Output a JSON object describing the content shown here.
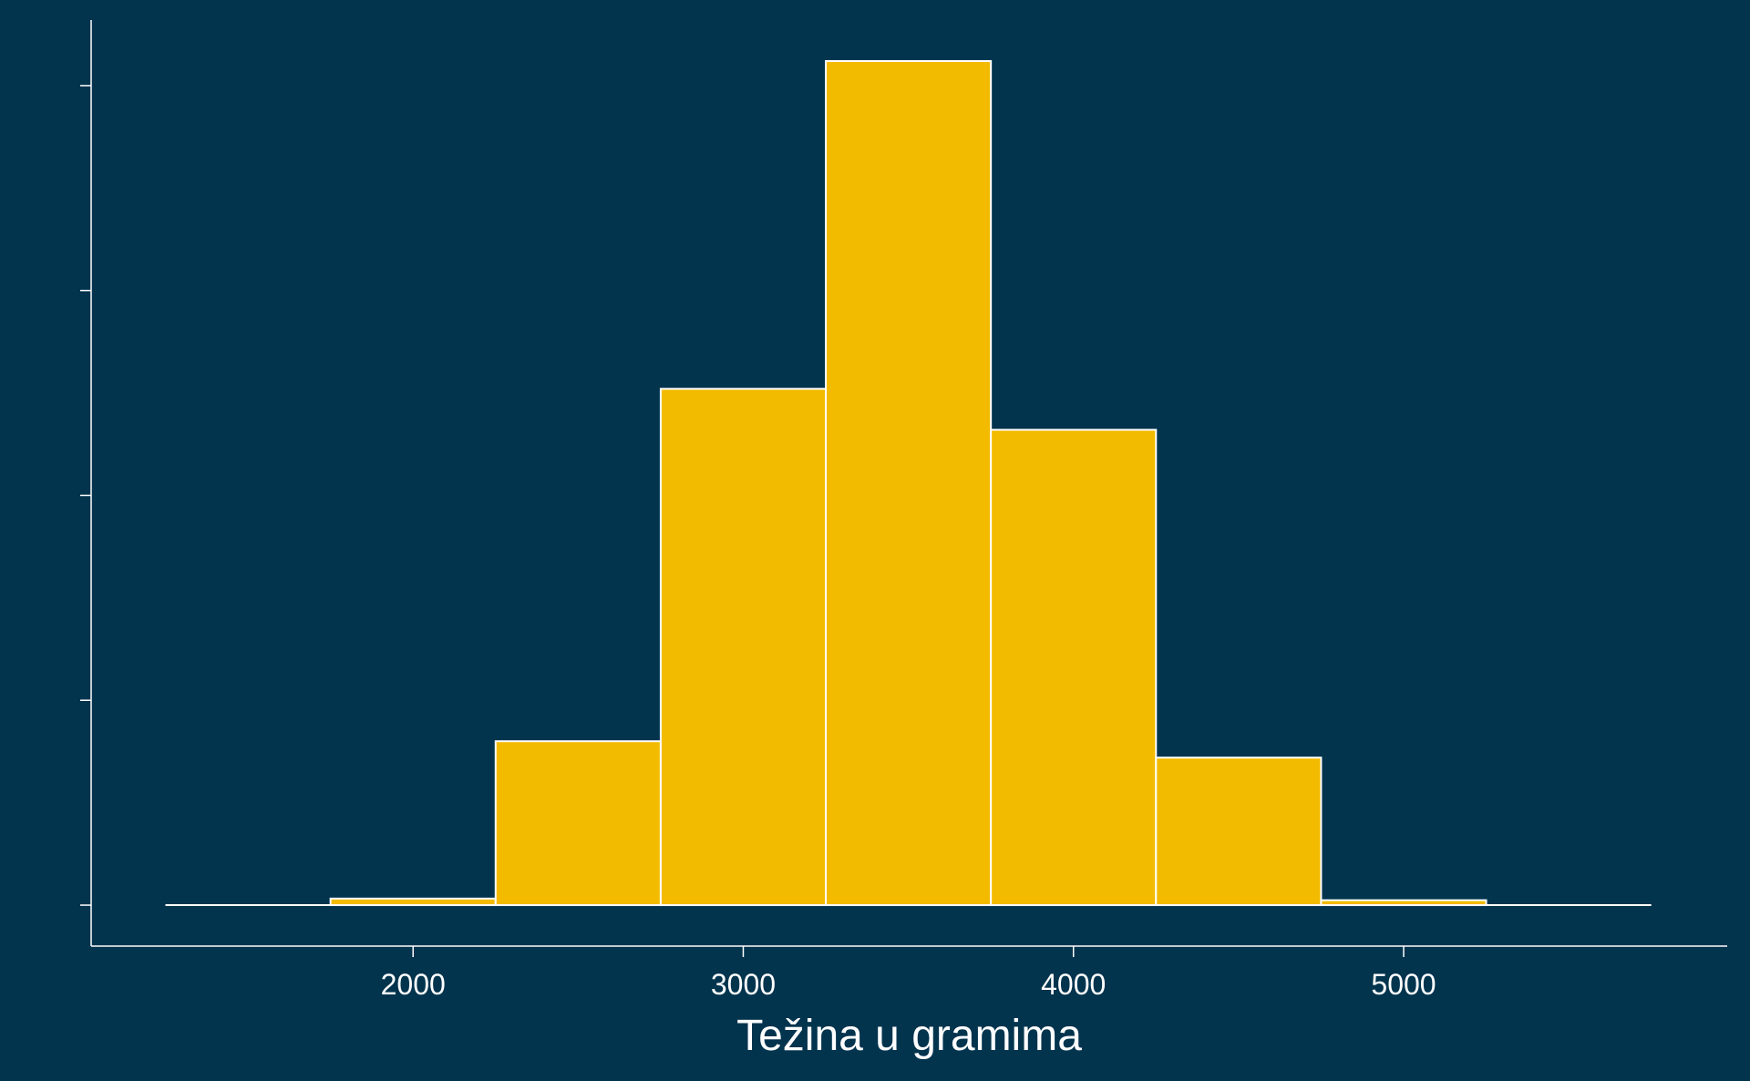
{
  "colors": {
    "background": "#03344e",
    "bar_fill": "#f3bb00",
    "bar_stroke": "#ffffff",
    "axis": "#ffffff"
  },
  "chart_data": {
    "type": "bar",
    "title": "",
    "xlabel": "Težina u gramima",
    "ylabel": "",
    "grid": false,
    "legend": "none",
    "bins": [
      {
        "x0": 1250,
        "x1": 1750,
        "count": 0
      },
      {
        "x0": 1750,
        "x1": 2250,
        "count": 0.8
      },
      {
        "x0": 2250,
        "x1": 2750,
        "count": 20
      },
      {
        "x0": 2750,
        "x1": 3250,
        "count": 63
      },
      {
        "x0": 3250,
        "x1": 3750,
        "count": 103
      },
      {
        "x0": 3750,
        "x1": 4250,
        "count": 58
      },
      {
        "x0": 4250,
        "x1": 4750,
        "count": 18
      },
      {
        "x0": 4750,
        "x1": 5250,
        "count": 0.6
      },
      {
        "x0": 5250,
        "x1": 5750,
        "count": 0
      }
    ],
    "xticks": [
      2000,
      3000,
      4000,
      5000
    ],
    "xtick_labels": [
      "2000",
      "3000",
      "4000",
      "5000"
    ],
    "yticks": [
      0,
      25,
      50,
      75,
      100
    ],
    "xlim": [
      1025,
      5980
    ],
    "ylim": [
      -5,
      108
    ]
  }
}
